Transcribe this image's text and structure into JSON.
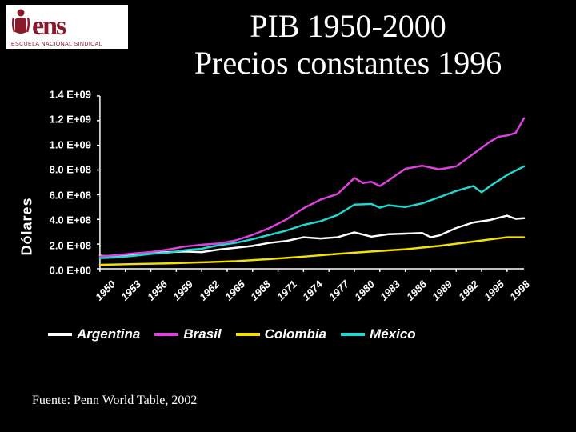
{
  "logo": {
    "text": "ens",
    "subtitle": "ESCUELA NACIONAL SINDICAL",
    "color": "#8a1a2b",
    "bg": "#ffffff"
  },
  "title": {
    "line1": "PIB 1950-2000",
    "line2": "Precios constantes 1996",
    "color": "#ffffff",
    "fontsize": 40
  },
  "chart": {
    "type": "line",
    "background_color": "#000000",
    "axis_color": "#ffffff",
    "tick_font": {
      "family": "Arial",
      "weight": "bold",
      "size": 13,
      "color": "#ffffff"
    },
    "y_axis_label": "Dólares",
    "y_axis_label_fontsize": 18,
    "ylim": [
      0,
      1400000000.0
    ],
    "y_ticks": [
      {
        "v": 0.0,
        "label": "0.0 E+00"
      },
      {
        "v": 200000000.0,
        "label": "2.0 E+08"
      },
      {
        "v": 400000000.0,
        "label": "4.0 E+08"
      },
      {
        "v": 600000000.0,
        "label": "6.0 E+08"
      },
      {
        "v": 800000000.0,
        "label": "8.0 E+08"
      },
      {
        "v": 1000000000.0,
        "label": "1.0 E+09"
      },
      {
        "v": 1200000000.0,
        "label": "1.2 E+09"
      },
      {
        "v": 1400000000.0,
        "label": "1.4 E+09"
      }
    ],
    "x_ticks": [
      1950,
      1953,
      1956,
      1959,
      1962,
      1965,
      1968,
      1971,
      1974,
      1977,
      1980,
      1983,
      1986,
      1989,
      1992,
      1995,
      1998
    ],
    "x_domain": [
      1950,
      2000
    ],
    "line_width": 2.5,
    "series": [
      {
        "name": "Argentina",
        "color": "#ffffff",
        "data": [
          [
            1950,
            105000000.0
          ],
          [
            1952,
            100000000.0
          ],
          [
            1954,
            115000000.0
          ],
          [
            1956,
            125000000.0
          ],
          [
            1958,
            135000000.0
          ],
          [
            1960,
            140000000.0
          ],
          [
            1962,
            135000000.0
          ],
          [
            1964,
            155000000.0
          ],
          [
            1966,
            170000000.0
          ],
          [
            1968,
            185000000.0
          ],
          [
            1970,
            210000000.0
          ],
          [
            1972,
            225000000.0
          ],
          [
            1974,
            255000000.0
          ],
          [
            1976,
            245000000.0
          ],
          [
            1978,
            255000000.0
          ],
          [
            1980,
            295000000.0
          ],
          [
            1982,
            260000000.0
          ],
          [
            1984,
            280000000.0
          ],
          [
            1986,
            285000000.0
          ],
          [
            1988,
            290000000.0
          ],
          [
            1989,
            255000000.0
          ],
          [
            1990,
            270000000.0
          ],
          [
            1992,
            330000000.0
          ],
          [
            1994,
            375000000.0
          ],
          [
            1996,
            395000000.0
          ],
          [
            1998,
            430000000.0
          ],
          [
            1999,
            405000000.0
          ],
          [
            2000,
            410000000.0
          ]
        ]
      },
      {
        "name": "Brasil",
        "color": "#e040e0",
        "data": [
          [
            1950,
            100000000.0
          ],
          [
            1952,
            110000000.0
          ],
          [
            1954,
            125000000.0
          ],
          [
            1956,
            135000000.0
          ],
          [
            1958,
            155000000.0
          ],
          [
            1960,
            180000000.0
          ],
          [
            1962,
            195000000.0
          ],
          [
            1964,
            205000000.0
          ],
          [
            1966,
            230000000.0
          ],
          [
            1968,
            275000000.0
          ],
          [
            1970,
            330000000.0
          ],
          [
            1972,
            400000000.0
          ],
          [
            1974,
            490000000.0
          ],
          [
            1976,
            560000000.0
          ],
          [
            1978,
            605000000.0
          ],
          [
            1980,
            735000000.0
          ],
          [
            1981,
            695000000.0
          ],
          [
            1982,
            705000000.0
          ],
          [
            1983,
            670000000.0
          ],
          [
            1984,
            715000000.0
          ],
          [
            1986,
            810000000.0
          ],
          [
            1988,
            835000000.0
          ],
          [
            1990,
            805000000.0
          ],
          [
            1992,
            830000000.0
          ],
          [
            1994,
            930000000.0
          ],
          [
            1996,
            1030000000.0
          ],
          [
            1997,
            1070000000.0
          ],
          [
            1998,
            1080000000.0
          ],
          [
            1999,
            1100000000.0
          ],
          [
            2000,
            1220000000.0
          ]
        ]
      },
      {
        "name": "Colombia",
        "color": "#f5e100",
        "data": [
          [
            1950,
            32000000.0
          ],
          [
            1954,
            38000000.0
          ],
          [
            1958,
            43000000.0
          ],
          [
            1962,
            52000000.0
          ],
          [
            1966,
            62000000.0
          ],
          [
            1970,
            78000000.0
          ],
          [
            1974,
            98000000.0
          ],
          [
            1978,
            120000000.0
          ],
          [
            1982,
            140000000.0
          ],
          [
            1986,
            158000000.0
          ],
          [
            1990,
            185000000.0
          ],
          [
            1994,
            220000000.0
          ],
          [
            1998,
            255000000.0
          ],
          [
            2000,
            255000000.0
          ]
        ]
      },
      {
        "name": "México",
        "color": "#20d8d0",
        "data": [
          [
            1950,
            85000000.0
          ],
          [
            1952,
            92000000.0
          ],
          [
            1954,
            105000000.0
          ],
          [
            1956,
            120000000.0
          ],
          [
            1958,
            130000000.0
          ],
          [
            1960,
            150000000.0
          ],
          [
            1962,
            162000000.0
          ],
          [
            1964,
            190000000.0
          ],
          [
            1966,
            210000000.0
          ],
          [
            1968,
            240000000.0
          ],
          [
            1970,
            275000000.0
          ],
          [
            1972,
            310000000.0
          ],
          [
            1974,
            355000000.0
          ],
          [
            1976,
            385000000.0
          ],
          [
            1978,
            435000000.0
          ],
          [
            1980,
            520000000.0
          ],
          [
            1982,
            525000000.0
          ],
          [
            1983,
            495000000.0
          ],
          [
            1984,
            515000000.0
          ],
          [
            1986,
            500000000.0
          ],
          [
            1988,
            530000000.0
          ],
          [
            1990,
            580000000.0
          ],
          [
            1992,
            630000000.0
          ],
          [
            1994,
            670000000.0
          ],
          [
            1995,
            620000000.0
          ],
          [
            1996,
            670000000.0
          ],
          [
            1998,
            760000000.0
          ],
          [
            2000,
            830000000.0
          ]
        ]
      }
    ],
    "legend": {
      "position": "bottom",
      "fontsize": 17,
      "font_style": "italic",
      "font_weight": "bold"
    }
  },
  "source": {
    "text": "Fuente: Penn World Table, 2002",
    "fontsize": 16,
    "color": "#ffffff"
  }
}
